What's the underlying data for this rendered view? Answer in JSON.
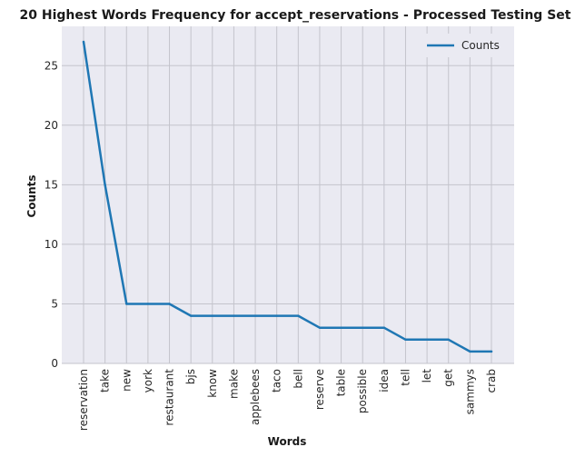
{
  "chart_data": {
    "type": "line",
    "title": "20 Highest Words Frequency for accept_reservations - Processed Testing Set",
    "xlabel": "Words",
    "ylabel": "Counts",
    "categories": [
      "reservation",
      "take",
      "new",
      "york",
      "restaurant",
      "bjs",
      "know",
      "make",
      "applebees",
      "taco",
      "bell",
      "reserve",
      "table",
      "possible",
      "idea",
      "tell",
      "let",
      "get",
      "sammys",
      "crab"
    ],
    "series": [
      {
        "name": "Counts",
        "color": "#1f77b4",
        "values": [
          27,
          15,
          5,
          5,
          5,
          4,
          4,
          4,
          4,
          4,
          4,
          3,
          3,
          3,
          3,
          2,
          2,
          2,
          1,
          1
        ]
      }
    ],
    "yticks": [
      0,
      5,
      10,
      15,
      20,
      25
    ],
    "ylim": [
      0,
      28.3
    ],
    "grid": true,
    "legend_position": "top-right",
    "background": "#eaeaf2"
  }
}
